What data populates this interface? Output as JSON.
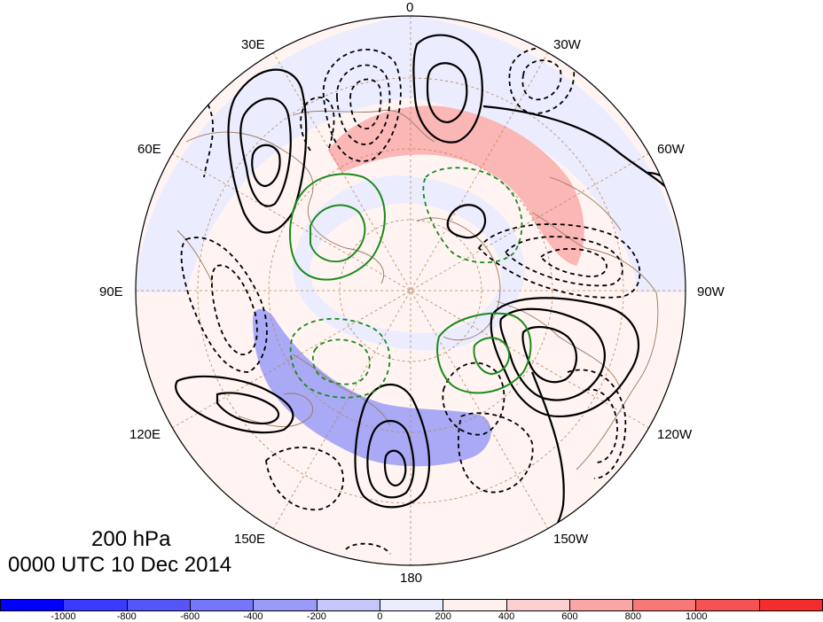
{
  "map": {
    "projection": "polar stereographic",
    "level_label": "200 hPa",
    "time_label": "0000 UTC 10 Dec 2014",
    "longitude_labels": [
      "0",
      "30W",
      "60W",
      "90W",
      "120W",
      "150W",
      "180",
      "150E",
      "120E",
      "90E",
      "60E",
      "30E"
    ]
  },
  "colorbar": {
    "colors": [
      "#0000ff",
      "#3b3bff",
      "#5555fa",
      "#7676f8",
      "#9a9af8",
      "#c6c6fa",
      "#ececff",
      "#fff0f0",
      "#fcd0d0",
      "#fba6a6",
      "#f87878",
      "#f65252",
      "#f42c2c"
    ],
    "tick_labels": [
      "-1000",
      "-800",
      "-600",
      "-400",
      "-200",
      "0",
      "200",
      "400",
      "600",
      "800",
      "1000"
    ]
  },
  "legend_styles": {
    "solid_black": "positive contour",
    "dashed_black": "negative contour",
    "green": "secondary field"
  }
}
